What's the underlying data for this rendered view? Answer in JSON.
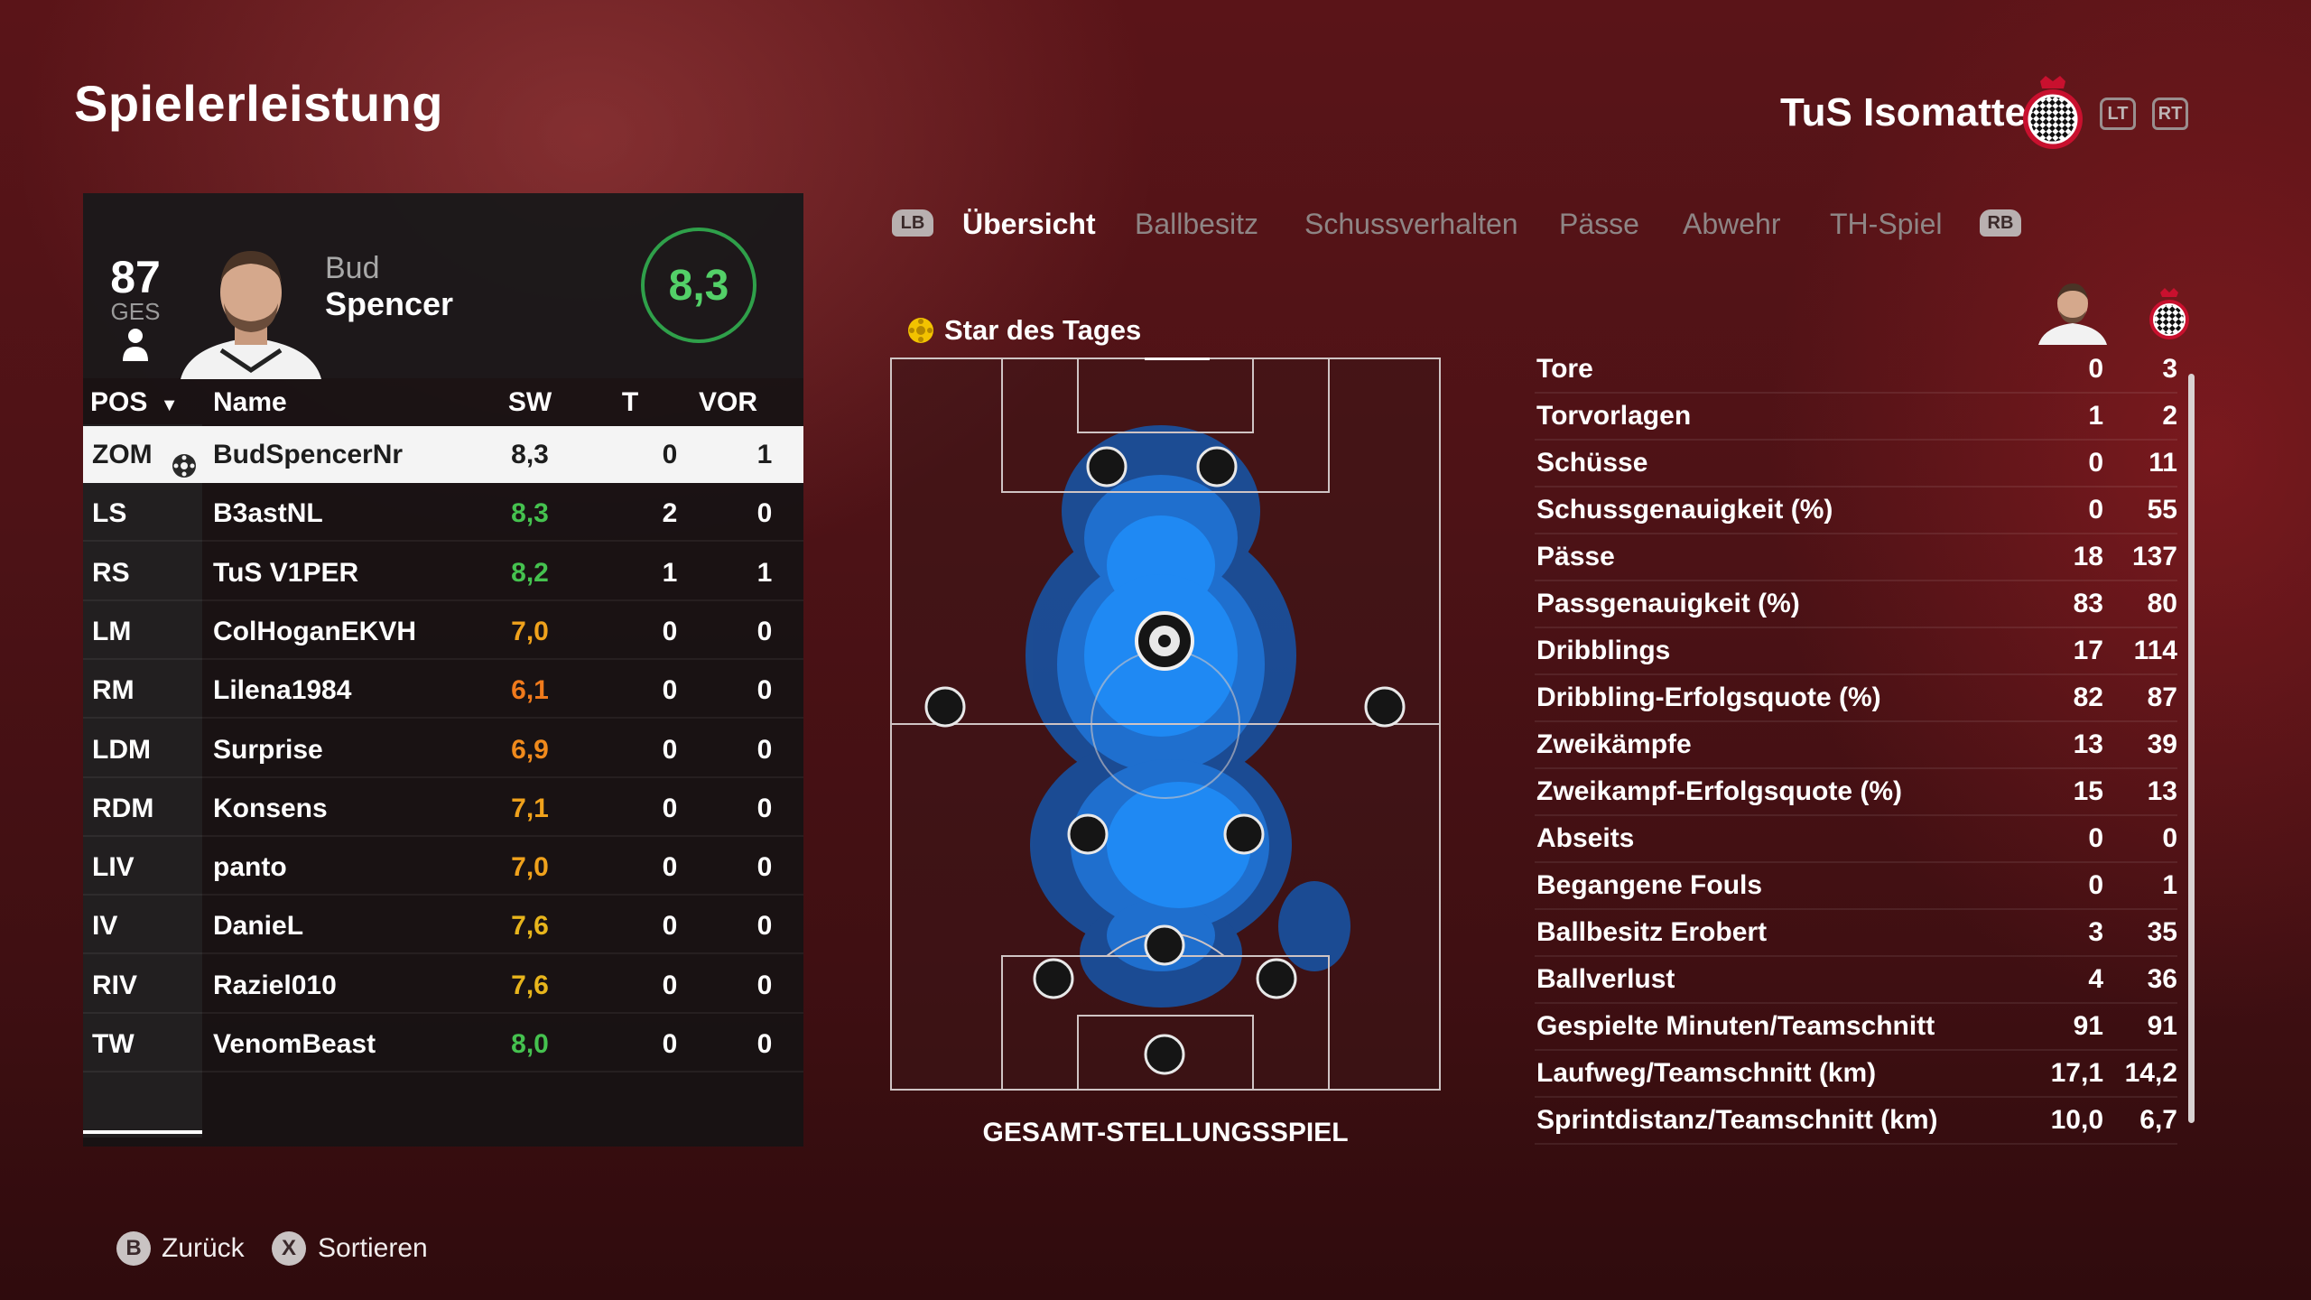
{
  "page_title": "Spielerleistung",
  "team": {
    "name": "TuS Isomatte"
  },
  "triggers": {
    "left": "LT",
    "right": "RT"
  },
  "bumpers": {
    "left": "LB",
    "right": "RB"
  },
  "player_card": {
    "overall": "87",
    "overall_label": "GES",
    "first_name": "Bud",
    "last_name": "Spencer",
    "rating": "8,3"
  },
  "table": {
    "headers": {
      "pos": "POS",
      "name": "Name",
      "sw": "SW",
      "t": "T",
      "vor": "VOR"
    },
    "rows": [
      {
        "pos": "ZOM",
        "name": "BudSpencerNr",
        "sw": "8,3",
        "t": "0",
        "vor": "1",
        "color": "#1d1d1d"
      },
      {
        "pos": "LS",
        "name": "B3astNL",
        "sw": "8,3",
        "t": "2",
        "vor": "0",
        "color": "#45c24f"
      },
      {
        "pos": "RS",
        "name": "TuS V1PER",
        "sw": "8,2",
        "t": "1",
        "vor": "1",
        "color": "#45c24f"
      },
      {
        "pos": "LM",
        "name": "ColHoganEKVH",
        "sw": "7,0",
        "t": "0",
        "vor": "0",
        "color": "#f0a21c"
      },
      {
        "pos": "RM",
        "name": "Lilena1984",
        "sw": "6,1",
        "t": "0",
        "vor": "0",
        "color": "#f07a1c"
      },
      {
        "pos": "LDM",
        "name": "Surprise",
        "sw": "6,9",
        "t": "0",
        "vor": "0",
        "color": "#f08a1c"
      },
      {
        "pos": "RDM",
        "name": "Konsens",
        "sw": "7,1",
        "t": "0",
        "vor": "0",
        "color": "#f0a21c"
      },
      {
        "pos": "LIV",
        "name": "panto",
        "sw": "7,0",
        "t": "0",
        "vor": "0",
        "color": "#f0a21c"
      },
      {
        "pos": "IV",
        "name": "DanieL",
        "sw": "7,6",
        "t": "0",
        "vor": "0",
        "color": "#e8b51c"
      },
      {
        "pos": "RIV",
        "name": "Raziel010",
        "sw": "7,6",
        "t": "0",
        "vor": "0",
        "color": "#e8b51c"
      },
      {
        "pos": "TW",
        "name": "VenomBeast",
        "sw": "8,0",
        "t": "0",
        "vor": "0",
        "color": "#45c24f"
      }
    ]
  },
  "tabs": [
    "Übersicht",
    "Ballbesitz",
    "Schussverhalten",
    "Pässe",
    "Abwehr",
    "TH-Spiel"
  ],
  "active_tab": "Übersicht",
  "star_label": "Star des Tages",
  "pitch_caption": "GESAMT-STELLUNGSSPIEL",
  "stats": [
    {
      "label": "Tore",
      "player": "0",
      "team": "3"
    },
    {
      "label": "Torvorlagen",
      "player": "1",
      "team": "2"
    },
    {
      "label": "Schüsse",
      "player": "0",
      "team": "11"
    },
    {
      "label": "Schussgenauigkeit (%)",
      "player": "0",
      "team": "55"
    },
    {
      "label": "Pässe",
      "player": "18",
      "team": "137"
    },
    {
      "label": "Passgenauigkeit (%)",
      "player": "83",
      "team": "80"
    },
    {
      "label": "Dribblings",
      "player": "17",
      "team": "114"
    },
    {
      "label": "Dribbling-Erfolgsquote (%)",
      "player": "82",
      "team": "87"
    },
    {
      "label": "Zweikämpfe",
      "player": "13",
      "team": "39"
    },
    {
      "label": "Zweikampf-Erfolgsquote (%)",
      "player": "15",
      "team": "13"
    },
    {
      "label": "Abseits",
      "player": "0",
      "team": "0"
    },
    {
      "label": "Begangene Fouls",
      "player": "0",
      "team": "1"
    },
    {
      "label": "Ballbesitz Erobert",
      "player": "3",
      "team": "35"
    },
    {
      "label": "Ballverlust",
      "player": "4",
      "team": "36"
    },
    {
      "label": "Gespielte Minuten/Teamschnitt",
      "player": "91",
      "team": "91"
    },
    {
      "label": "Laufweg/Teamschnitt (km)",
      "player": "17,1",
      "team": "14,2"
    },
    {
      "label": "Sprintdistanz/Teamschnitt (km)",
      "player": "10,0",
      "team": "6,7"
    }
  ],
  "footer": {
    "back": {
      "button": "B",
      "label": "Zurück"
    },
    "sort": {
      "button": "X",
      "label": "Sortieren"
    }
  },
  "colors": {
    "rating_green": "#45c24f",
    "heatmap_blue": "#1e90ff",
    "brand_red": "#c8102e"
  }
}
